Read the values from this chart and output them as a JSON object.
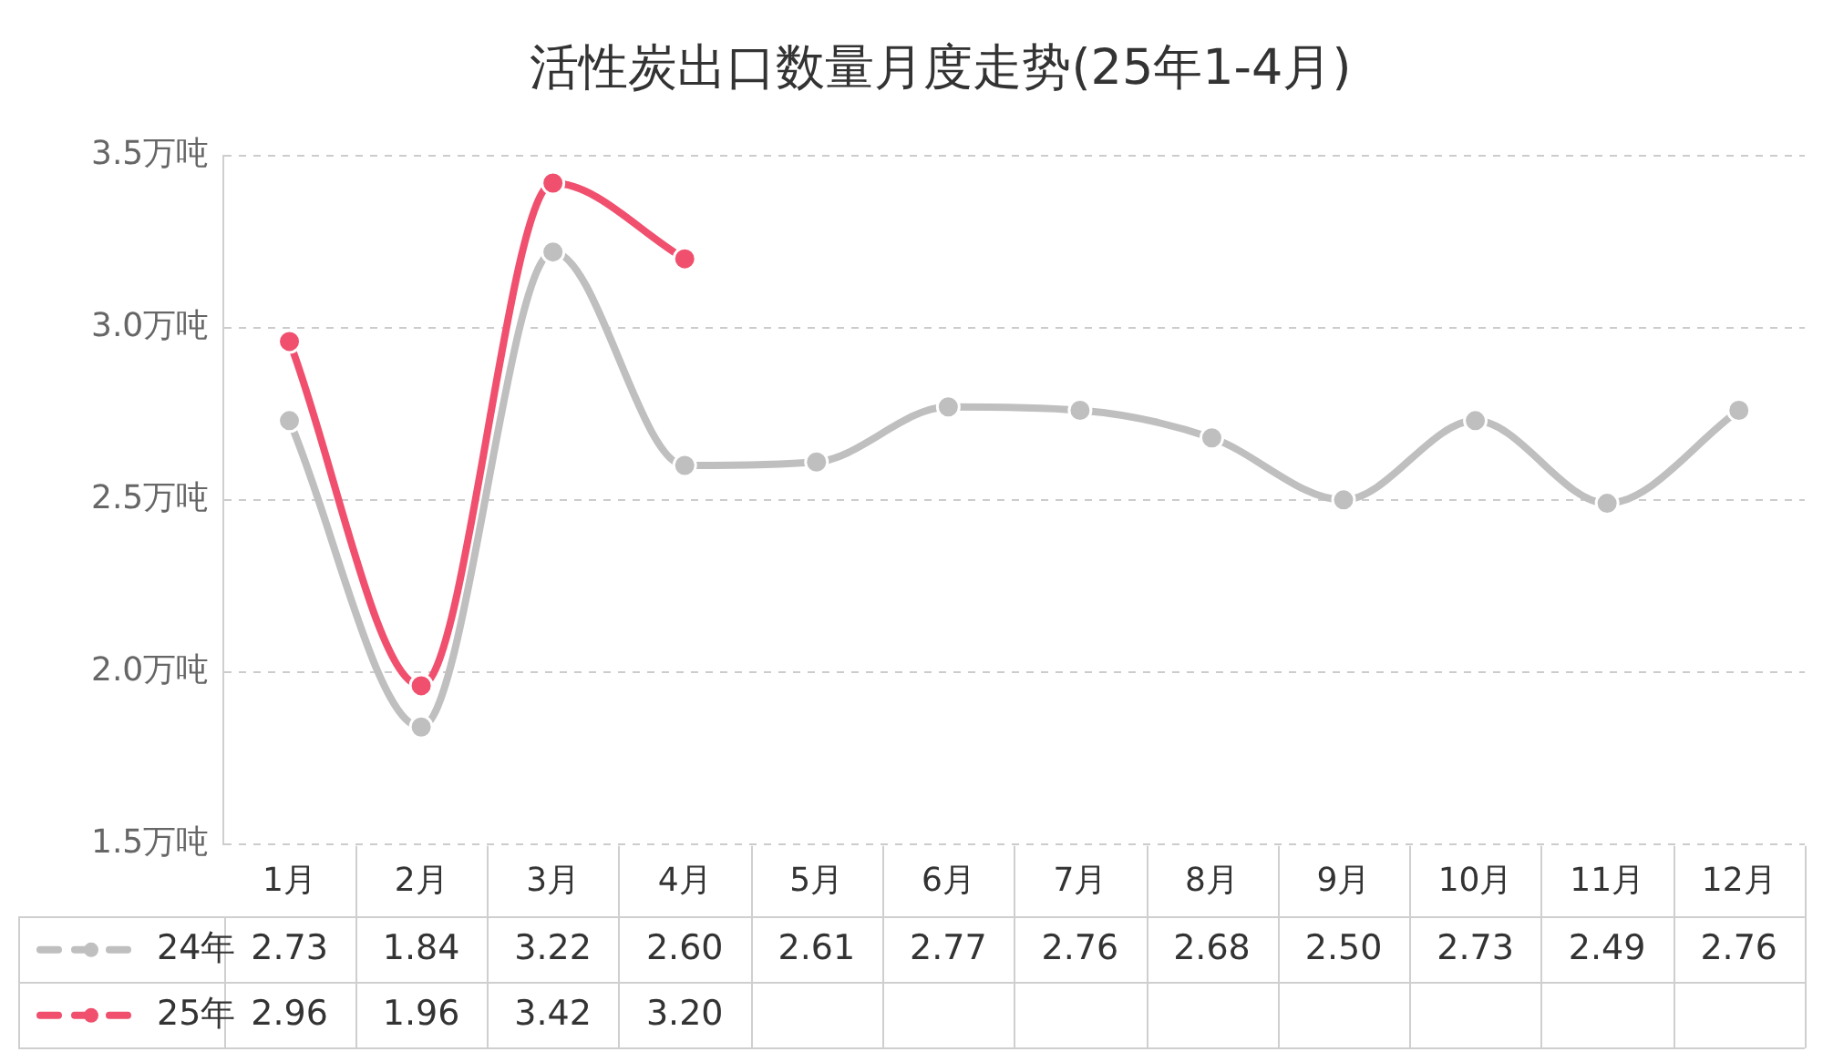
{
  "chart_data": {
    "type": "line",
    "title": "活性炭出口数量月度走势(25年1-4月)",
    "categories": [
      "1月",
      "2月",
      "3月",
      "4月",
      "5月",
      "6月",
      "7月",
      "8月",
      "9月",
      "10月",
      "11月",
      "12月"
    ],
    "series": [
      {
        "name": "24年",
        "color": "#bfbfbf",
        "values": [
          2.73,
          1.84,
          3.22,
          2.6,
          2.61,
          2.77,
          2.76,
          2.68,
          2.5,
          2.73,
          2.49,
          2.76
        ],
        "value_labels": [
          "2.73",
          "1.84",
          "3.22",
          "2.60",
          "2.61",
          "2.77",
          "2.76",
          "2.68",
          "2.50",
          "2.73",
          "2.49",
          "2.76"
        ]
      },
      {
        "name": "25年",
        "color": "#f0506e",
        "values": [
          2.96,
          1.96,
          3.42,
          3.2,
          null,
          null,
          null,
          null,
          null,
          null,
          null,
          null
        ],
        "value_labels": [
          "2.96",
          "1.96",
          "3.42",
          "3.20",
          null,
          null,
          null,
          null,
          null,
          null,
          null,
          null
        ]
      }
    ],
    "ylim": [
      1.5,
      3.5
    ],
    "yticks": [
      {
        "value": 1.5,
        "label": "1.5万吨"
      },
      {
        "value": 2.0,
        "label": "2.0万吨"
      },
      {
        "value": 2.5,
        "label": "2.5万吨"
      },
      {
        "value": 3.0,
        "label": "3.0万吨"
      },
      {
        "value": 3.5,
        "label": "3.5万吨"
      }
    ],
    "grid": "y",
    "legend": "bottom",
    "marker": "circle"
  }
}
